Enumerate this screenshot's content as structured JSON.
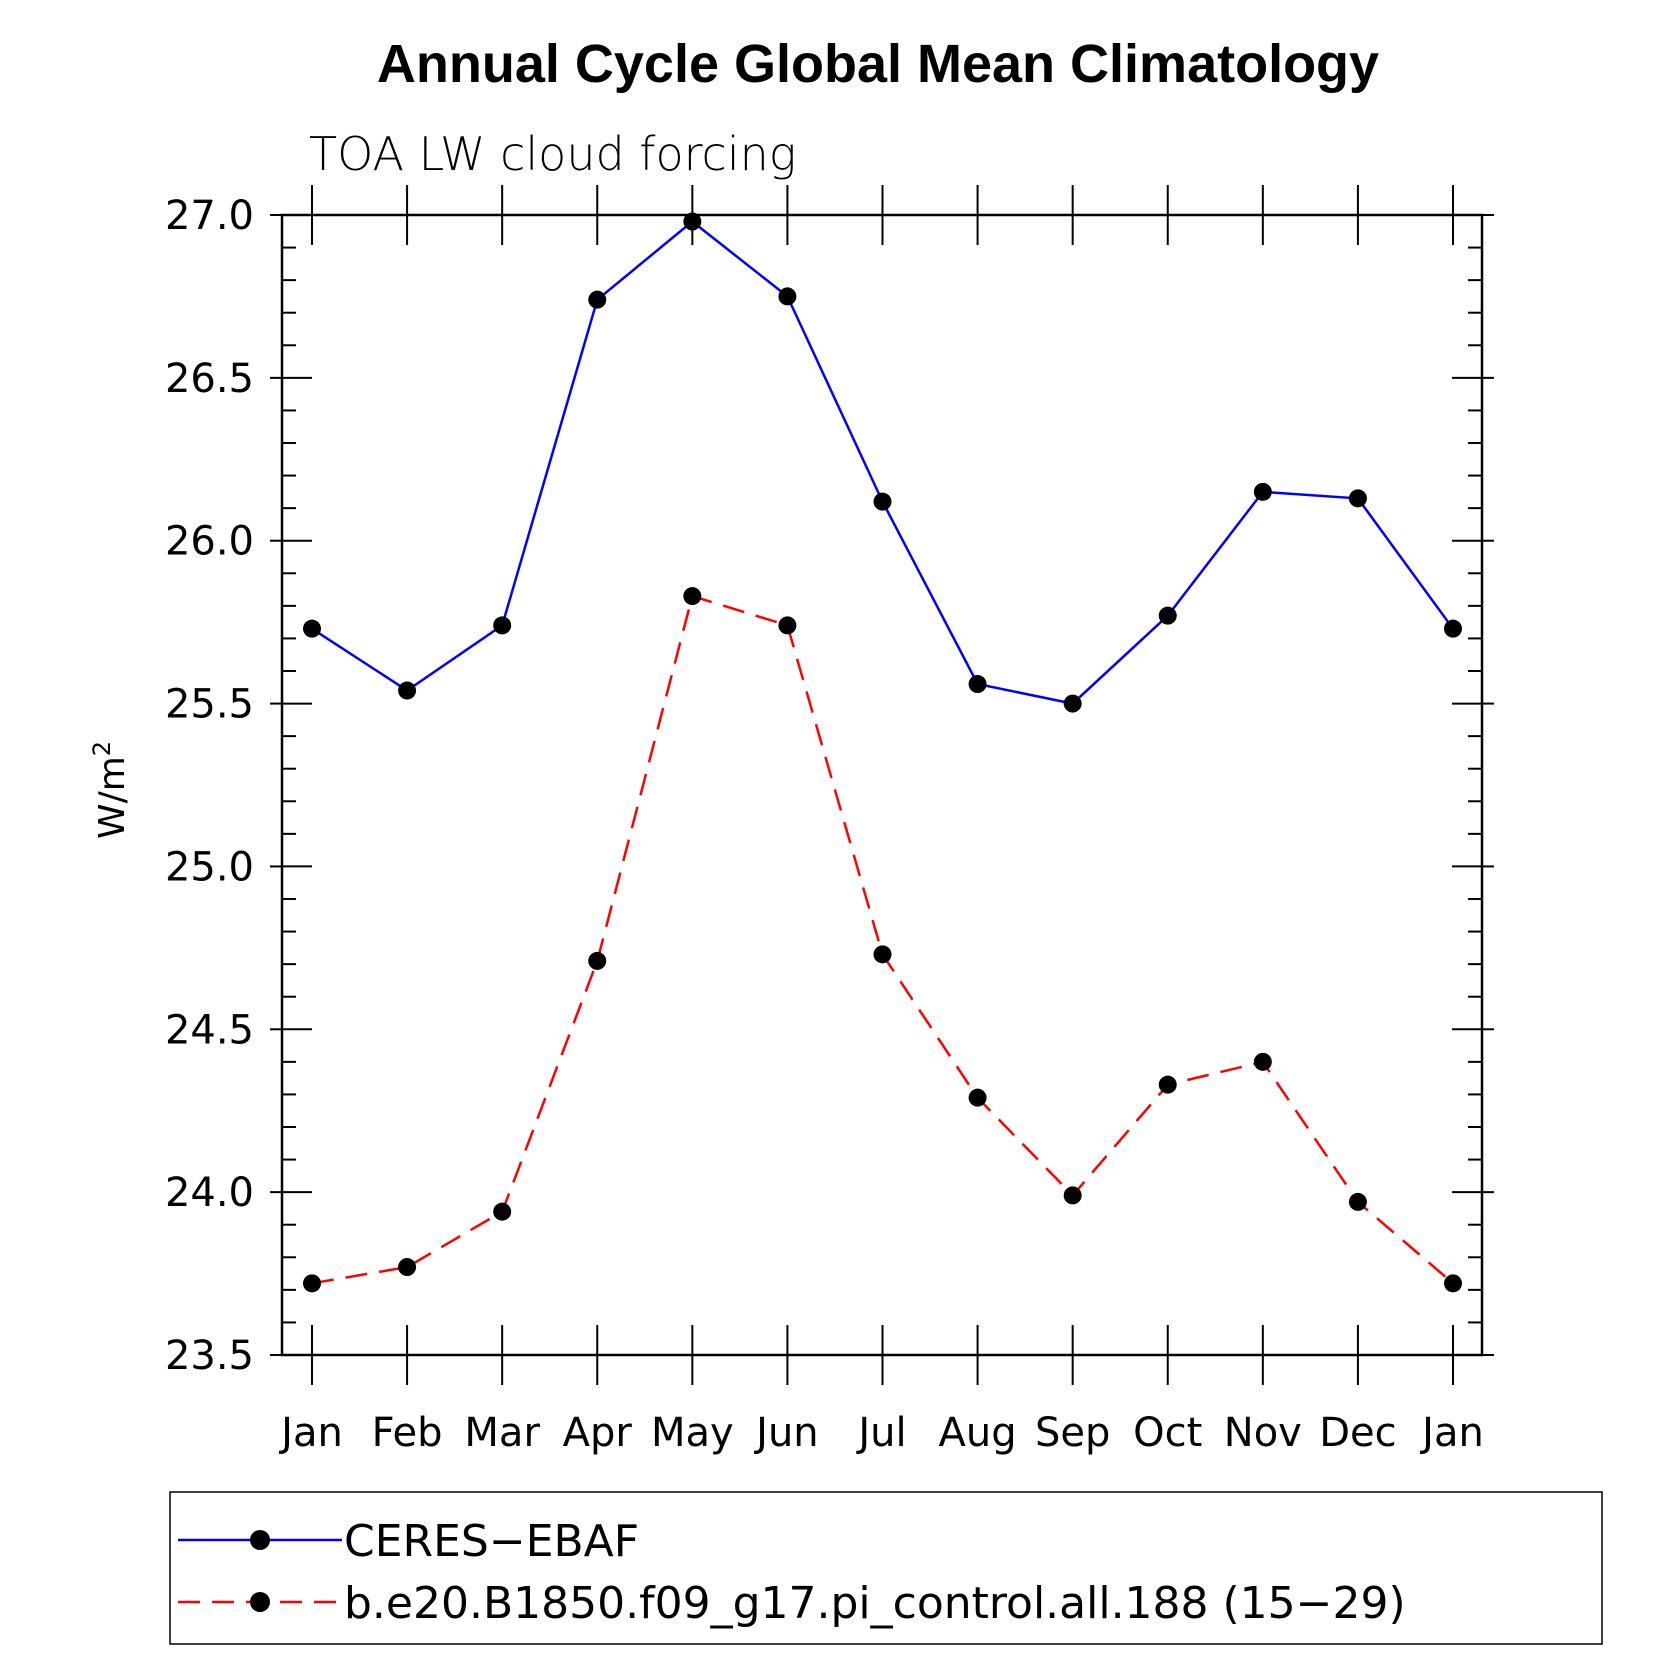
{
  "chart_data": {
    "type": "line",
    "title": "Annual Cycle Global Mean Climatology",
    "subtitle": "TOA LW cloud forcing",
    "ylabel": "W/m",
    "ylabel_sup": "2",
    "xlabel": "",
    "ylim": [
      23.5,
      27.0
    ],
    "yticks": [
      23.5,
      24.0,
      24.5,
      25.0,
      25.5,
      26.0,
      26.5,
      27.0
    ],
    "ytick_labels": [
      "23.5",
      "24.0",
      "24.5",
      "25.0",
      "25.5",
      "26.0",
      "26.5",
      "27.0"
    ],
    "yminor_step": 0.1,
    "categories": [
      "Jan",
      "Feb",
      "Mar",
      "Apr",
      "May",
      "Jun",
      "Jul",
      "Aug",
      "Sep",
      "Oct",
      "Nov",
      "Dec",
      "Jan"
    ],
    "grid": false,
    "legend_position": "bottom",
    "series": [
      {
        "name": "CERES−EBAF",
        "color": "#0000ff",
        "dash": "solid",
        "values": [
          25.73,
          25.54,
          25.74,
          26.74,
          26.98,
          26.75,
          26.12,
          25.56,
          25.5,
          25.77,
          26.15,
          26.13,
          25.73
        ]
      },
      {
        "name": "b.e20.B1850.f09_g17.pi_control.all.188 (15−29)",
        "color": "#ff0000",
        "dash": "dashed",
        "values": [
          23.72,
          23.77,
          23.94,
          24.71,
          25.83,
          25.74,
          24.73,
          24.29,
          23.99,
          24.33,
          24.4,
          23.97,
          23.72
        ]
      }
    ]
  }
}
